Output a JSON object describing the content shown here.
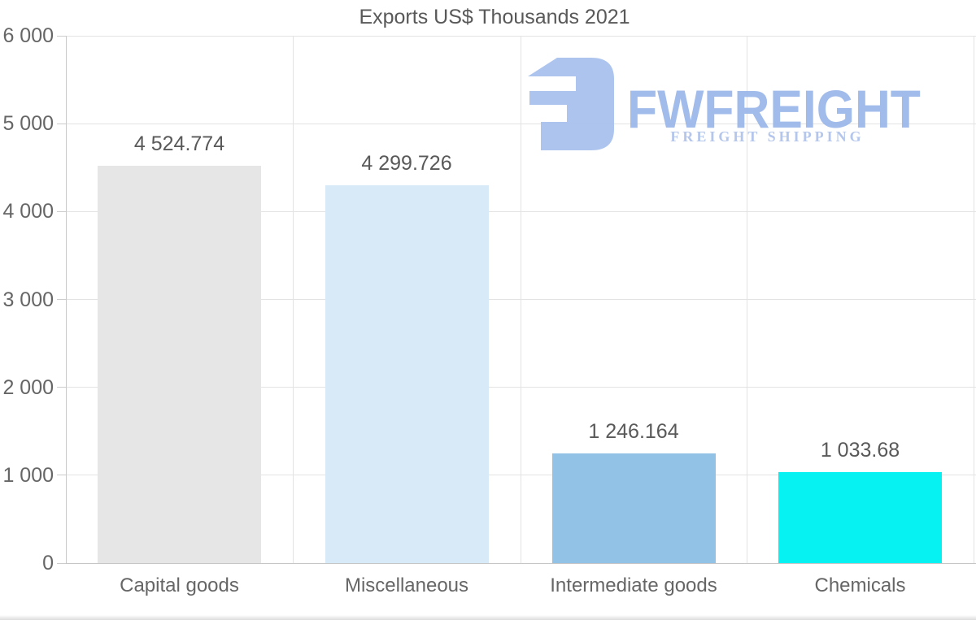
{
  "chart_data": {
    "type": "bar",
    "title": "Exports US$ Thousands 2021",
    "categories": [
      "Capital goods",
      "Miscellaneous",
      "Intermediate goods",
      "Chemicals"
    ],
    "values": [
      4524.774,
      4299.726,
      1246.164,
      1033.68
    ],
    "value_labels": [
      "4 524.774",
      "4 299.726",
      "1 246.164",
      "1 033.68"
    ],
    "bar_colors": [
      "#e6e6e6",
      "#d8e9f8",
      "#93c2e7",
      "#06f2f2"
    ],
    "xlabel": "",
    "ylabel": "",
    "ylim": [
      0,
      6000
    ],
    "ytick_values": [
      0,
      1000,
      2000,
      3000,
      4000,
      5000,
      6000
    ],
    "ytick_labels": [
      "0",
      "1 000",
      "2 000",
      "3 000",
      "4 000",
      "5 000",
      "6 000"
    ],
    "grid": "on",
    "legend": "none"
  },
  "watermark": {
    "logo_icon": "fwfreight-monogram",
    "brand": "FWFREIGHT",
    "tagline": "FREIGHT SHIPPING",
    "mark_color": "#a9c2ee",
    "brand_color": "#9cb8e9",
    "tagline_color": "#b0c3ea"
  },
  "style_colors": {
    "grid": "#e3e3e3",
    "baseline": "#c6c6c6",
    "axis": "#c9c9c9",
    "tick": "#cccccc",
    "axis_label": "#666666",
    "title": "#595959",
    "value_label": "#595959",
    "background": "#ffffff"
  }
}
